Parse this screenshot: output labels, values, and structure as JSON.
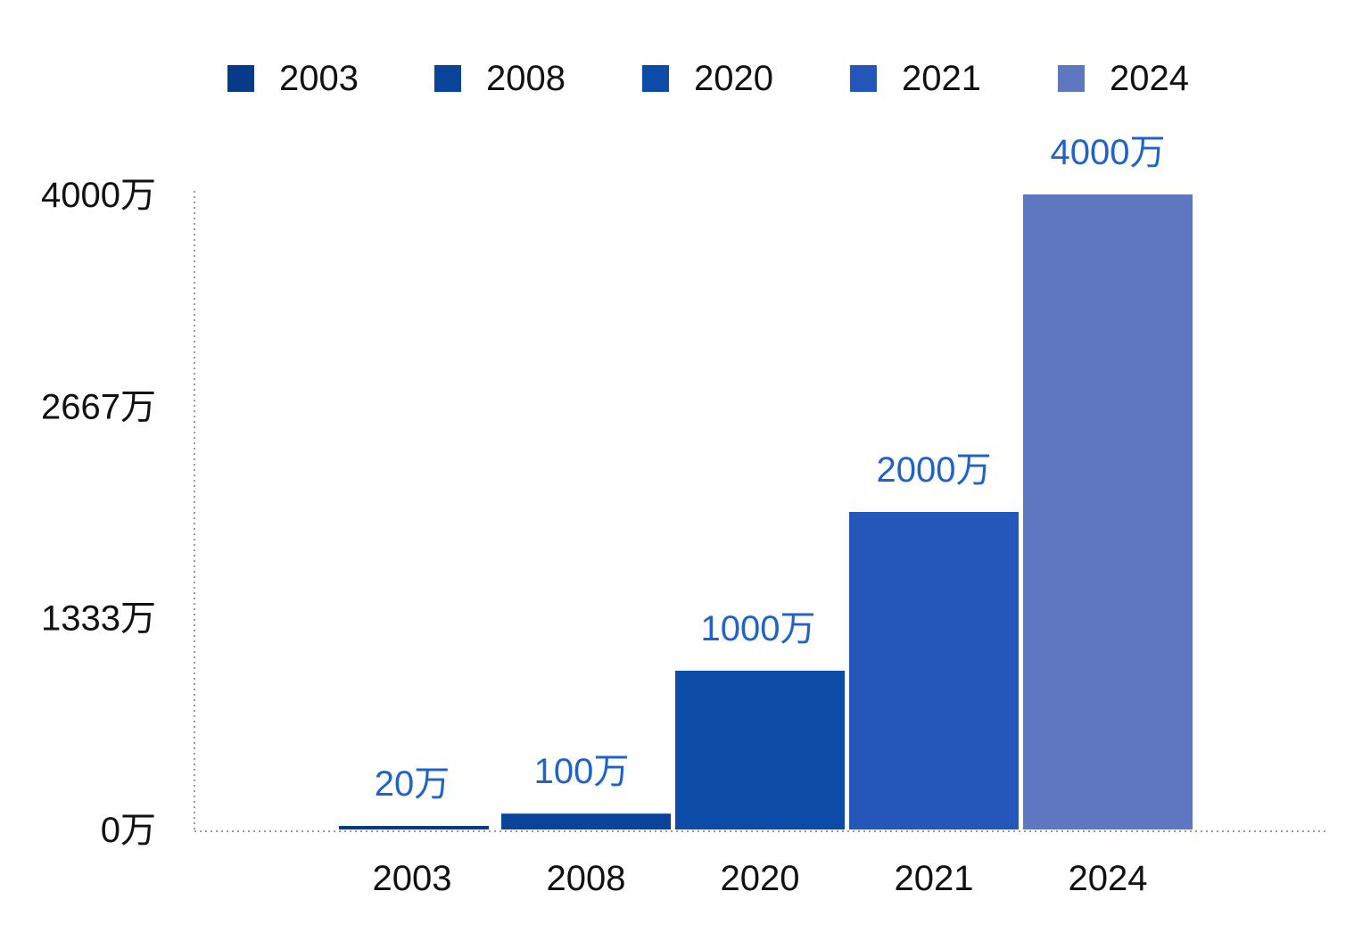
{
  "chart_data": {
    "type": "bar",
    "categories": [
      "2003",
      "2008",
      "2020",
      "2021",
      "2024"
    ],
    "values": [
      20,
      100,
      1000,
      2000,
      4000
    ],
    "data_labels": [
      "20万",
      "100万",
      "1000万",
      "2000万",
      "4000万"
    ],
    "colors": [
      "#083a8a",
      "#0a449a",
      "#0c4ca8",
      "#2557ba",
      "#5f76c0"
    ],
    "ylim": [
      0,
      4000
    ],
    "y_ticks": [
      0,
      1333,
      2667,
      4000
    ],
    "y_tick_labels": [
      "0万",
      "1333万",
      "2667万",
      "4000万"
    ],
    "legend": {
      "position": "top",
      "entries": [
        "2003",
        "2008",
        "2020",
        "2021",
        "2024"
      ]
    },
    "grid": false
  }
}
